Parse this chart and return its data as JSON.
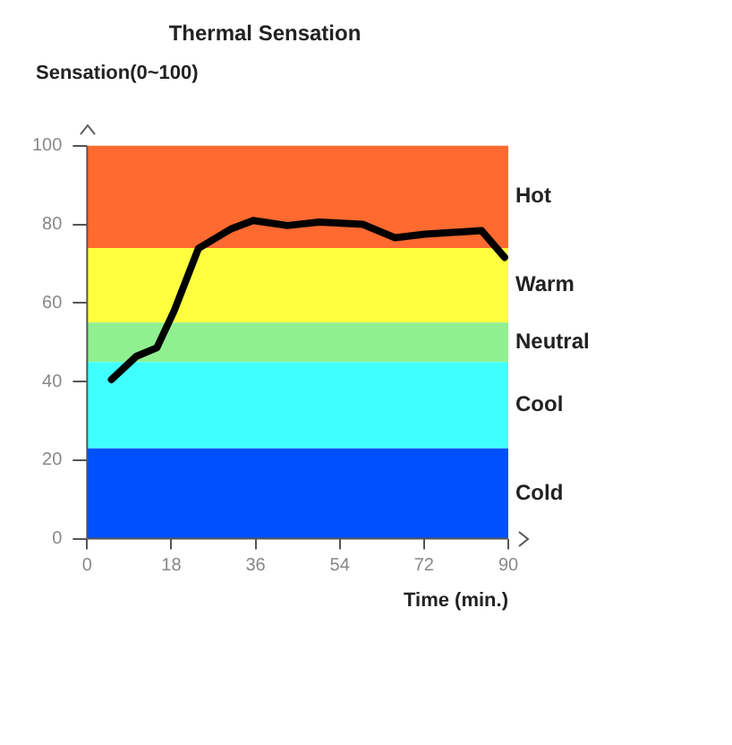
{
  "chart_data": {
    "type": "line",
    "title": "Thermal Sensation",
    "ylabel": "Sensation(0~100)",
    "xlabel": "Time (min.)",
    "x": [
      5.2,
      10.5,
      14.9,
      18.6,
      23.8,
      30.7,
      35.5,
      42.8,
      49.6,
      58.9,
      65.8,
      72.2,
      84.3,
      89.2
    ],
    "series": [
      {
        "color": "#000000",
        "values": [
          40.5,
          46.4,
          48.6,
          58,
          73.9,
          78.8,
          81,
          79.7,
          80.6,
          80,
          76.6,
          77.5,
          78.4,
          71.6
        ]
      }
    ],
    "xlim": [
      0,
      90
    ],
    "xticks": [
      0,
      18,
      36,
      54,
      72,
      90
    ],
    "ylim": [
      0,
      100
    ],
    "yticks": [
      0,
      20,
      40,
      60,
      80,
      100
    ],
    "bands": [
      {
        "axis": "y",
        "from": 74,
        "to": 100,
        "label": "Hot",
        "color": "#ff6a30"
      },
      {
        "axis": "y",
        "from": 55,
        "to": 74,
        "label": "Warm",
        "color": "#ffff40"
      },
      {
        "axis": "y",
        "from": 45,
        "to": 55,
        "label": "Neutral",
        "color": "#90f090"
      },
      {
        "axis": "y",
        "from": 23,
        "to": 45,
        "label": "Cool",
        "color": "#40ffff"
      },
      {
        "axis": "y",
        "from": 0,
        "to": 23,
        "label": "Cold",
        "color": "#0050ff"
      }
    ],
    "grid": false,
    "legend": false,
    "marker": "none",
    "line_style": "solid"
  }
}
